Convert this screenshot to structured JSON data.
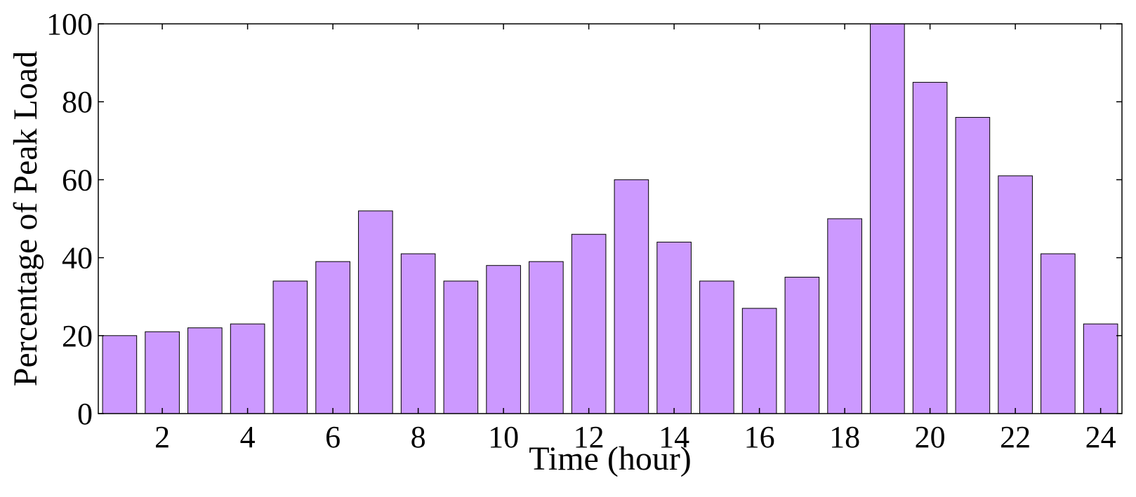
{
  "chart_data": {
    "type": "bar",
    "x_label": "Time (hour)",
    "y_label": "Percentage of Peak Load",
    "x": [
      1,
      2,
      3,
      4,
      5,
      6,
      7,
      8,
      9,
      10,
      11,
      12,
      13,
      14,
      15,
      16,
      17,
      18,
      19,
      20,
      21,
      22,
      23,
      24
    ],
    "values": [
      20,
      21,
      22,
      23,
      34,
      39,
      52,
      41,
      34,
      38,
      39,
      46,
      60,
      44,
      34,
      27,
      35,
      50,
      100,
      85,
      76,
      61,
      41,
      23
    ],
    "color": "#cc99ff",
    "xlim": [
      0.5,
      24.5
    ],
    "xticks": [
      2,
      4,
      6,
      8,
      10,
      12,
      14,
      16,
      18,
      20,
      22,
      24
    ],
    "ylim": [
      0,
      100
    ],
    "yticks": [
      0,
      20,
      40,
      60,
      80,
      100
    ],
    "grid": false
  }
}
